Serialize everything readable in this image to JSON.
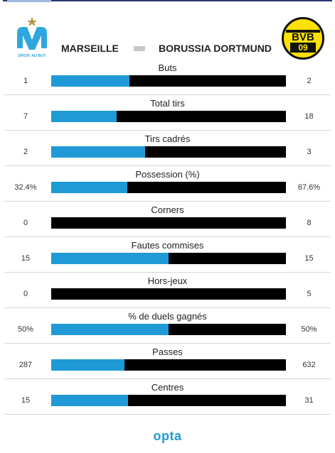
{
  "match": {
    "home_team": "MARSEILLE",
    "away_team": "BORUSSIA DORTMUND",
    "home_logo_icon": "olympique-marseille-crest",
    "away_logo_icon": "bvb-09-crest",
    "home_logo_text": "OM",
    "home_logo_motto": "DROIT AU BUT",
    "away_logo_text": "BVB",
    "away_logo_number": "09"
  },
  "colors": {
    "home_bar": "#1f9ad6",
    "away_bar": "#000000",
    "bvb_yellow": "#fde100",
    "brand": "#1f9ad6"
  },
  "stats": [
    {
      "label": "Buts",
      "home": "1",
      "away": "2",
      "home_share": 0.333
    },
    {
      "label": "Total tirs",
      "home": "7",
      "away": "18",
      "home_share": 0.28
    },
    {
      "label": "Tirs cadrés",
      "home": "2",
      "away": "3",
      "home_share": 0.4
    },
    {
      "label": "Possession (%)",
      "home": "32.4%",
      "away": "67.6%",
      "home_share": 0.324
    },
    {
      "label": "Corners",
      "home": "0",
      "away": "8",
      "home_share": 0.0
    },
    {
      "label": "Fautes commises",
      "home": "15",
      "away": "15",
      "home_share": 0.5
    },
    {
      "label": "Hors-jeux",
      "home": "0",
      "away": "5",
      "home_share": 0.0
    },
    {
      "label": "% de duels gagnés",
      "home": "50%",
      "away": "50%",
      "home_share": 0.5
    },
    {
      "label": "Passes",
      "home": "287",
      "away": "632",
      "home_share": 0.312
    },
    {
      "label": "Centres",
      "home": "15",
      "away": "31",
      "home_share": 0.326
    }
  ],
  "footer": {
    "brand": "opta"
  }
}
